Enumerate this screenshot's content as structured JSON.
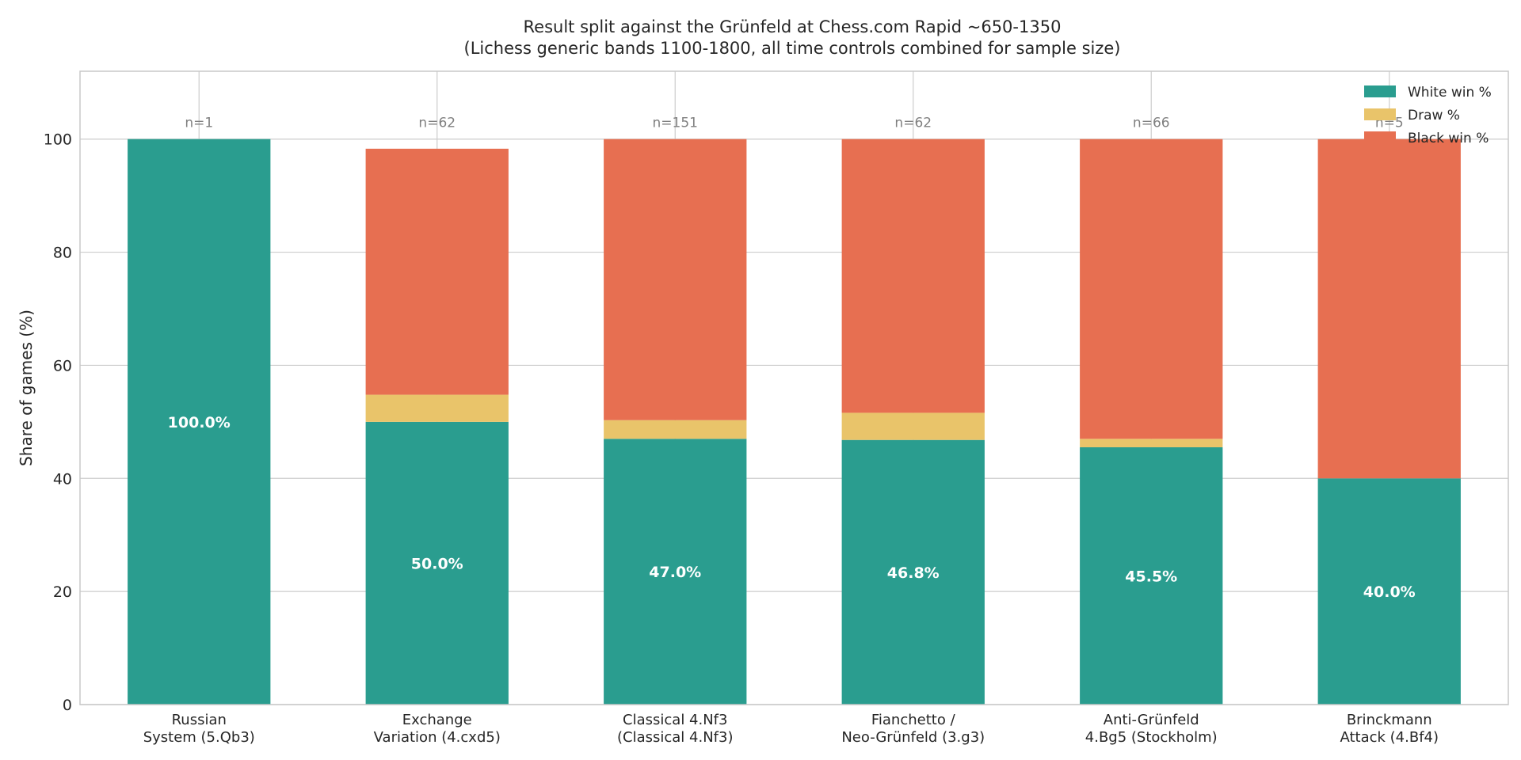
{
  "chart_data": {
    "type": "bar",
    "stacked": true,
    "title": "Result split against the Grünfeld at Chess.com Rapid ~650-1350",
    "subtitle": "(Lichess generic bands 1100-1800, all time controls combined for sample size)",
    "xlabel": "",
    "ylabel": "Share of games (%)",
    "ylim": [
      0,
      112
    ],
    "yticks": [
      0,
      20,
      40,
      60,
      80,
      100
    ],
    "grid": true,
    "legend_position": "top-right",
    "categories": [
      [
        "Russian",
        "System (5.Qb3)"
      ],
      [
        "Exchange",
        "Variation (4.cxd5)"
      ],
      [
        "Classical 4.Nf3",
        "(Classical 4.Nf3)"
      ],
      [
        "Fianchetto /",
        "Neo-Grünfeld (3.g3)"
      ],
      [
        "Anti-Grünfeld",
        "4.Bg5 (Stockholm)"
      ],
      [
        "Brinckmann",
        "Attack (4.Bf4)"
      ]
    ],
    "sample_sizes": [
      "n=1",
      "n=62",
      "n=151",
      "n=62",
      "n=66",
      "n=5"
    ],
    "series": [
      {
        "name": "White win %",
        "color": "#2a9d8f",
        "values": [
          100.0,
          50.0,
          47.0,
          46.8,
          45.5,
          40.0
        ]
      },
      {
        "name": "Draw %",
        "color": "#e9c46a",
        "values": [
          0.0,
          4.8,
          3.3,
          4.8,
          1.5,
          0.0
        ]
      },
      {
        "name": "Black win %",
        "color": "#e76f51",
        "values": [
          0.0,
          43.5,
          49.7,
          48.4,
          53.0,
          60.0
        ]
      }
    ],
    "value_labels": [
      "100.0%",
      "50.0%",
      "47.0%",
      "46.8%",
      "45.5%",
      "40.0%"
    ]
  }
}
